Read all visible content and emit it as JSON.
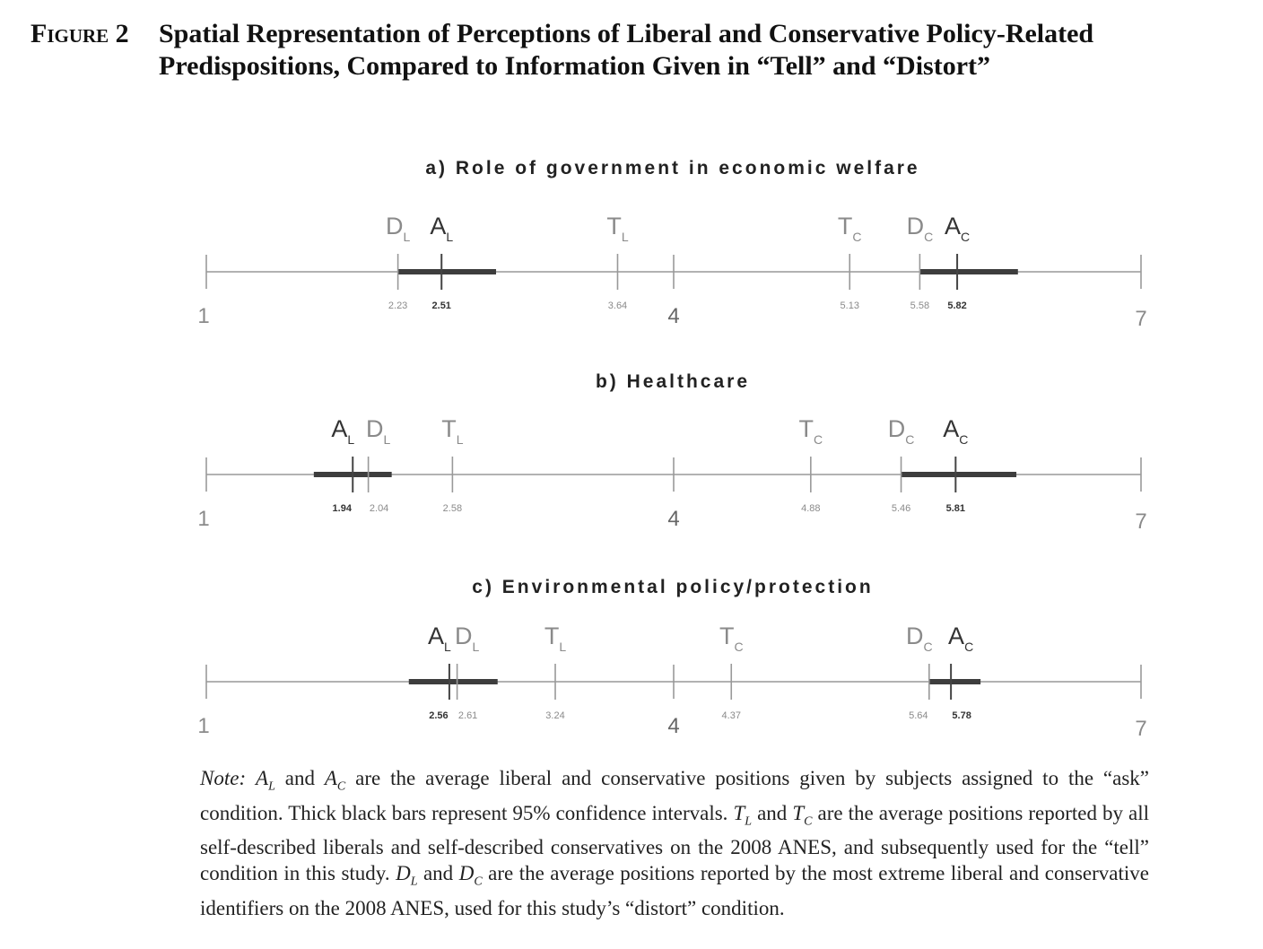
{
  "figure": {
    "label": "Figure 2",
    "title": "Spatial Representation of Perceptions of Liberal and Conservative Policy-Related Predispositions, Compared to Information Given in “Tell” and “Distort”"
  },
  "colors": {
    "axis": "#999999",
    "bar": "#3d3d3d",
    "text": "#222222",
    "light_text": "#8a8a8a"
  },
  "chart_data": [
    {
      "type": "dot_interval",
      "title": "a) Role of government in economic welfare",
      "axis": {
        "min": 1,
        "max": 7,
        "tick_labels": [
          "1",
          "4",
          "7"
        ]
      },
      "points": [
        {
          "id": "D_L",
          "symbol": "D",
          "sub": "L",
          "value": 2.23,
          "label": "2.23"
        },
        {
          "id": "A_L",
          "symbol": "A",
          "sub": "L",
          "value": 2.51,
          "label": "2.51",
          "ci": [
            2.23,
            2.86
          ]
        },
        {
          "id": "T_L",
          "symbol": "T",
          "sub": "L",
          "value": 3.64,
          "label": "3.64"
        },
        {
          "id": "T_C",
          "symbol": "T",
          "sub": "C",
          "value": 5.13,
          "label": "5.13"
        },
        {
          "id": "D_C",
          "symbol": "D",
          "sub": "C",
          "value": 5.58,
          "label": "5.58"
        },
        {
          "id": "A_C",
          "symbol": "A",
          "sub": "C",
          "value": 5.82,
          "label": "5.82",
          "ci": [
            5.58,
            6.21
          ]
        }
      ]
    },
    {
      "type": "dot_interval",
      "title": "b) Healthcare",
      "axis": {
        "min": 1,
        "max": 7,
        "tick_labels": [
          "1",
          "4",
          "7"
        ]
      },
      "points": [
        {
          "id": "A_L",
          "symbol": "A",
          "sub": "L",
          "value": 1.94,
          "label": "1.94",
          "ci": [
            1.69,
            2.19
          ]
        },
        {
          "id": "D_L",
          "symbol": "D",
          "sub": "L",
          "value": 2.04,
          "label": "2.04"
        },
        {
          "id": "T_L",
          "symbol": "T",
          "sub": "L",
          "value": 2.58,
          "label": "2.58"
        },
        {
          "id": "T_C",
          "symbol": "T",
          "sub": "C",
          "value": 4.88,
          "label": "4.88"
        },
        {
          "id": "D_C",
          "symbol": "D",
          "sub": "C",
          "value": 5.46,
          "label": "5.46"
        },
        {
          "id": "A_C",
          "symbol": "A",
          "sub": "C",
          "value": 5.81,
          "label": "5.81",
          "ci": [
            5.46,
            6.2
          ]
        }
      ]
    },
    {
      "type": "dot_interval",
      "title": "c) Environmental policy/protection",
      "axis": {
        "min": 1,
        "max": 7,
        "tick_labels": [
          "1",
          "4",
          "7"
        ]
      },
      "points": [
        {
          "id": "A_L",
          "symbol": "A",
          "sub": "L",
          "value": 2.56,
          "label": "2.56",
          "ci": [
            2.3,
            2.87
          ]
        },
        {
          "id": "D_L",
          "symbol": "D",
          "sub": "L",
          "value": 2.61,
          "label": "2.61"
        },
        {
          "id": "T_L",
          "symbol": "T",
          "sub": "L",
          "value": 3.24,
          "label": "3.24"
        },
        {
          "id": "T_C",
          "symbol": "T",
          "sub": "C",
          "value": 4.37,
          "label": "4.37"
        },
        {
          "id": "D_C",
          "symbol": "D",
          "sub": "C",
          "value": 5.64,
          "label": "5.64"
        },
        {
          "id": "A_C",
          "symbol": "A",
          "sub": "C",
          "value": 5.78,
          "label": "5.78",
          "ci": [
            5.64,
            5.97
          ]
        }
      ]
    }
  ],
  "note": {
    "lead": "Note:",
    "t1": "A",
    "s1": "L",
    "t2": " and ",
    "t3": "A",
    "s2": "C",
    "t4": " are the average liberal and conservative positions given by subjects assigned to the “ask” condition. Thick black bars represent 95% confidence intervals. ",
    "t5": "T",
    "s3": "L",
    "t6": " and ",
    "t7": "T",
    "s4": "C",
    "t8": " are the average positions reported by all self-described liberals and self-described conservatives on the 2008 ANES, and subsequently used for the “tell” condition in this study. ",
    "t9": "D",
    "s5": "L",
    "t10": " and ",
    "t11": "D",
    "s6": "C",
    "t12": " are the average positions reported by the most extreme liberal and conservative identifiers on the 2008 ANES, used for this study’s “distort” condition."
  }
}
